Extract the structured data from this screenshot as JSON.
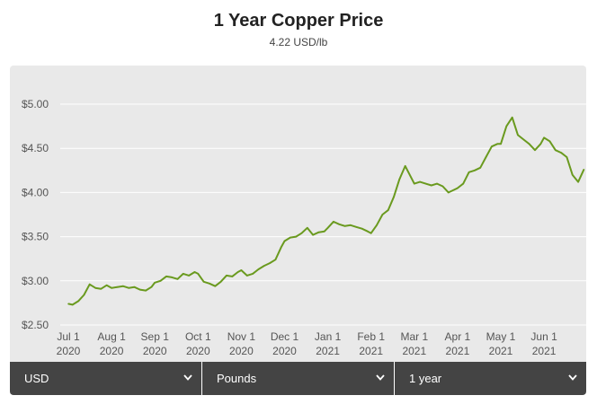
{
  "header": {
    "title": "1 Year Copper Price",
    "subtitle": "4.22 USD/lb"
  },
  "controls": {
    "currency": "USD",
    "unit": "Pounds",
    "range": "1 year"
  },
  "colors": {
    "line": "#6a9a1f",
    "panel": "#e9e9e9",
    "controls_bg": "#444444"
  },
  "chart_data": {
    "type": "line",
    "title": "1 Year Copper Price",
    "xlabel": "",
    "ylabel": "",
    "ylim": [
      2.5,
      5.0
    ],
    "yticks": [
      {
        "value": 5.0,
        "label": "$5.00"
      },
      {
        "value": 4.5,
        "label": "$4.50"
      },
      {
        "value": 4.0,
        "label": "$4.00"
      },
      {
        "value": 3.5,
        "label": "$3.50"
      },
      {
        "value": 3.0,
        "label": "$3.00"
      },
      {
        "value": 2.5,
        "label": "$2.50"
      }
    ],
    "xticks": [
      {
        "month": 0,
        "line1": "Jul 1",
        "line2": "2020"
      },
      {
        "month": 1,
        "line1": "Aug 1",
        "line2": "2020"
      },
      {
        "month": 2,
        "line1": "Sep 1",
        "line2": "2020"
      },
      {
        "month": 3,
        "line1": "Oct 1",
        "line2": "2020"
      },
      {
        "month": 4,
        "line1": "Nov 1",
        "line2": "2020"
      },
      {
        "month": 5,
        "line1": "Dec 1",
        "line2": "2020"
      },
      {
        "month": 6,
        "line1": "Jan 1",
        "line2": "2021"
      },
      {
        "month": 7,
        "line1": "Feb 1",
        "line2": "2021"
      },
      {
        "month": 8,
        "line1": "Mar 1",
        "line2": "2021"
      },
      {
        "month": 9,
        "line1": "Apr 1",
        "line2": "2021"
      },
      {
        "month": 10,
        "line1": "May 1",
        "line2": "2021"
      },
      {
        "month": 11,
        "line1": "Jun 1",
        "line2": "2021"
      }
    ],
    "grid": true,
    "series": [
      {
        "x": [
          "2020-07-01",
          "2020-07-04",
          "2020-07-08",
          "2020-07-12",
          "2020-07-16",
          "2020-07-20",
          "2020-07-24",
          "2020-07-28",
          "2020-08-01",
          "2020-08-05",
          "2020-08-09",
          "2020-08-13",
          "2020-08-17",
          "2020-08-21",
          "2020-08-25",
          "2020-08-29",
          "2020-09-01",
          "2020-09-05",
          "2020-09-09",
          "2020-09-13",
          "2020-09-17",
          "2020-09-21",
          "2020-09-25",
          "2020-09-29",
          "2020-10-01",
          "2020-10-05",
          "2020-10-09",
          "2020-10-13",
          "2020-10-17",
          "2020-10-21",
          "2020-10-25",
          "2020-10-29",
          "2020-11-01",
          "2020-11-05",
          "2020-11-09",
          "2020-11-13",
          "2020-11-17",
          "2020-11-21",
          "2020-11-25",
          "2020-11-29",
          "2020-12-01",
          "2020-12-05",
          "2020-12-09",
          "2020-12-13",
          "2020-12-17",
          "2020-12-21",
          "2020-12-25",
          "2020-12-29",
          "2021-01-01",
          "2021-01-05",
          "2021-01-09",
          "2021-01-13",
          "2021-01-17",
          "2021-01-21",
          "2021-01-25",
          "2021-01-29",
          "2021-02-01",
          "2021-02-05",
          "2021-02-09",
          "2021-02-13",
          "2021-02-17",
          "2021-02-21",
          "2021-02-25",
          "2021-03-01",
          "2021-03-05",
          "2021-03-09",
          "2021-03-13",
          "2021-03-17",
          "2021-03-21",
          "2021-03-25",
          "2021-03-29",
          "2021-04-01",
          "2021-04-05",
          "2021-04-09",
          "2021-04-13",
          "2021-04-17",
          "2021-04-21",
          "2021-04-25",
          "2021-04-29",
          "2021-05-01",
          "2021-05-05",
          "2021-05-09",
          "2021-05-13",
          "2021-05-17",
          "2021-05-21",
          "2021-05-25",
          "2021-05-29",
          "2021-06-01",
          "2021-06-05",
          "2021-06-09",
          "2021-06-13",
          "2021-06-17",
          "2021-06-21",
          "2021-06-25",
          "2021-06-29"
        ],
        "y": [
          2.74,
          2.73,
          2.77,
          2.84,
          2.96,
          2.92,
          2.91,
          2.95,
          2.92,
          2.93,
          2.94,
          2.92,
          2.93,
          2.9,
          2.89,
          2.93,
          2.98,
          3.0,
          3.05,
          3.04,
          3.02,
          3.08,
          3.06,
          3.1,
          3.08,
          2.99,
          2.97,
          2.94,
          2.99,
          3.06,
          3.05,
          3.1,
          3.12,
          3.06,
          3.08,
          3.13,
          3.17,
          3.2,
          3.24,
          3.38,
          3.45,
          3.49,
          3.5,
          3.54,
          3.6,
          3.52,
          3.55,
          3.56,
          3.6,
          3.67,
          3.64,
          3.62,
          3.63,
          3.61,
          3.59,
          3.56,
          3.54,
          3.63,
          3.75,
          3.8,
          3.95,
          4.15,
          4.3,
          4.1,
          4.12,
          4.1,
          4.08,
          4.1,
          4.07,
          4.0,
          4.03,
          4.05,
          4.1,
          4.23,
          4.25,
          4.28,
          4.4,
          4.52,
          4.55,
          4.55,
          4.75,
          4.85,
          4.65,
          4.6,
          4.55,
          4.48,
          4.55,
          4.62,
          4.58,
          4.48,
          4.45,
          4.4,
          4.2,
          4.12,
          4.26
        ]
      }
    ]
  }
}
